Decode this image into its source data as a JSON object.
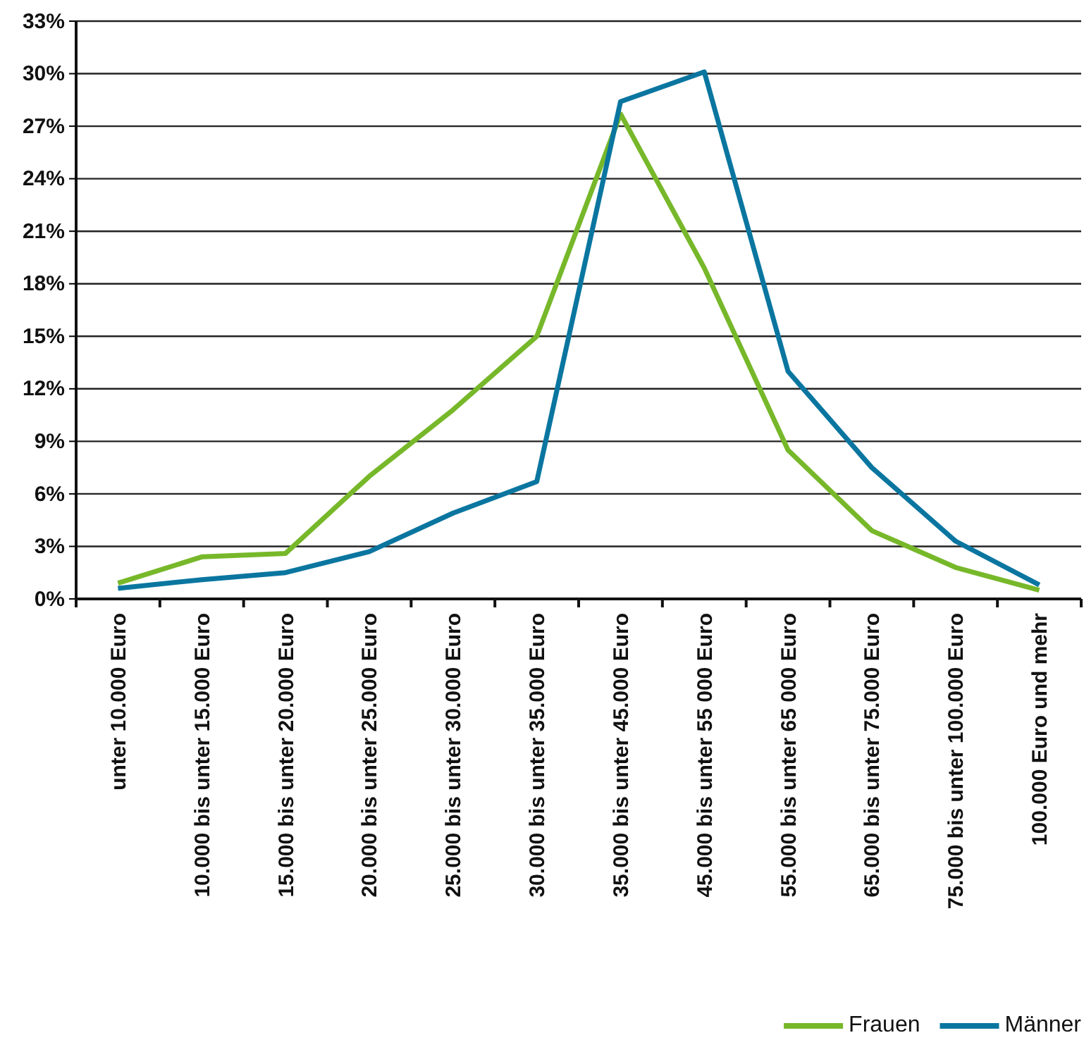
{
  "chart_data": {
    "type": "line",
    "categories": [
      "unter 10.000 Euro",
      "10.000 bis unter 15.000 Euro",
      "15.000 bis unter 20.000 Euro",
      "20.000 bis unter 25.000 Euro",
      "25.000 bis unter 30.000 Euro",
      "30.000 bis unter 35.000 Euro",
      "35.000 bis unter 45.000 Euro",
      "45.000 bis unter 55 000 Euro",
      "55.000 bis unter 65 000 Euro",
      "65.000 bis unter 75.000 Euro",
      "75.000 bis unter 100.000 Euro",
      "100.000 Euro und mehr"
    ],
    "series": [
      {
        "name": "Frauen",
        "color": "#77b82a",
        "values": [
          0.9,
          2.4,
          2.6,
          7.0,
          10.8,
          15.0,
          27.7,
          18.9,
          8.5,
          3.9,
          1.8,
          0.5
        ]
      },
      {
        "name": "Männer",
        "color": "#0a76a0",
        "values": [
          0.6,
          1.1,
          1.5,
          2.7,
          4.9,
          6.7,
          28.4,
          30.1,
          13.0,
          7.5,
          3.3,
          0.8
        ]
      }
    ],
    "ylim": [
      0,
      33
    ],
    "yticks": [
      {
        "value": 0,
        "label": "0%"
      },
      {
        "value": 3,
        "label": "3%"
      },
      {
        "value": 6,
        "label": "6%"
      },
      {
        "value": 9,
        "label": "9%"
      },
      {
        "value": 12,
        "label": "12%"
      },
      {
        "value": 15,
        "label": "15%"
      },
      {
        "value": 18,
        "label": "18%"
      },
      {
        "value": 21,
        "label": "21%"
      },
      {
        "value": 24,
        "label": "24%"
      },
      {
        "value": 27,
        "label": "27%"
      },
      {
        "value": 30,
        "label": "30%"
      },
      {
        "value": 33,
        "label": "33%"
      }
    ],
    "grid": "y",
    "legend": "bottom right",
    "marker": "none",
    "line_style": "solid"
  }
}
